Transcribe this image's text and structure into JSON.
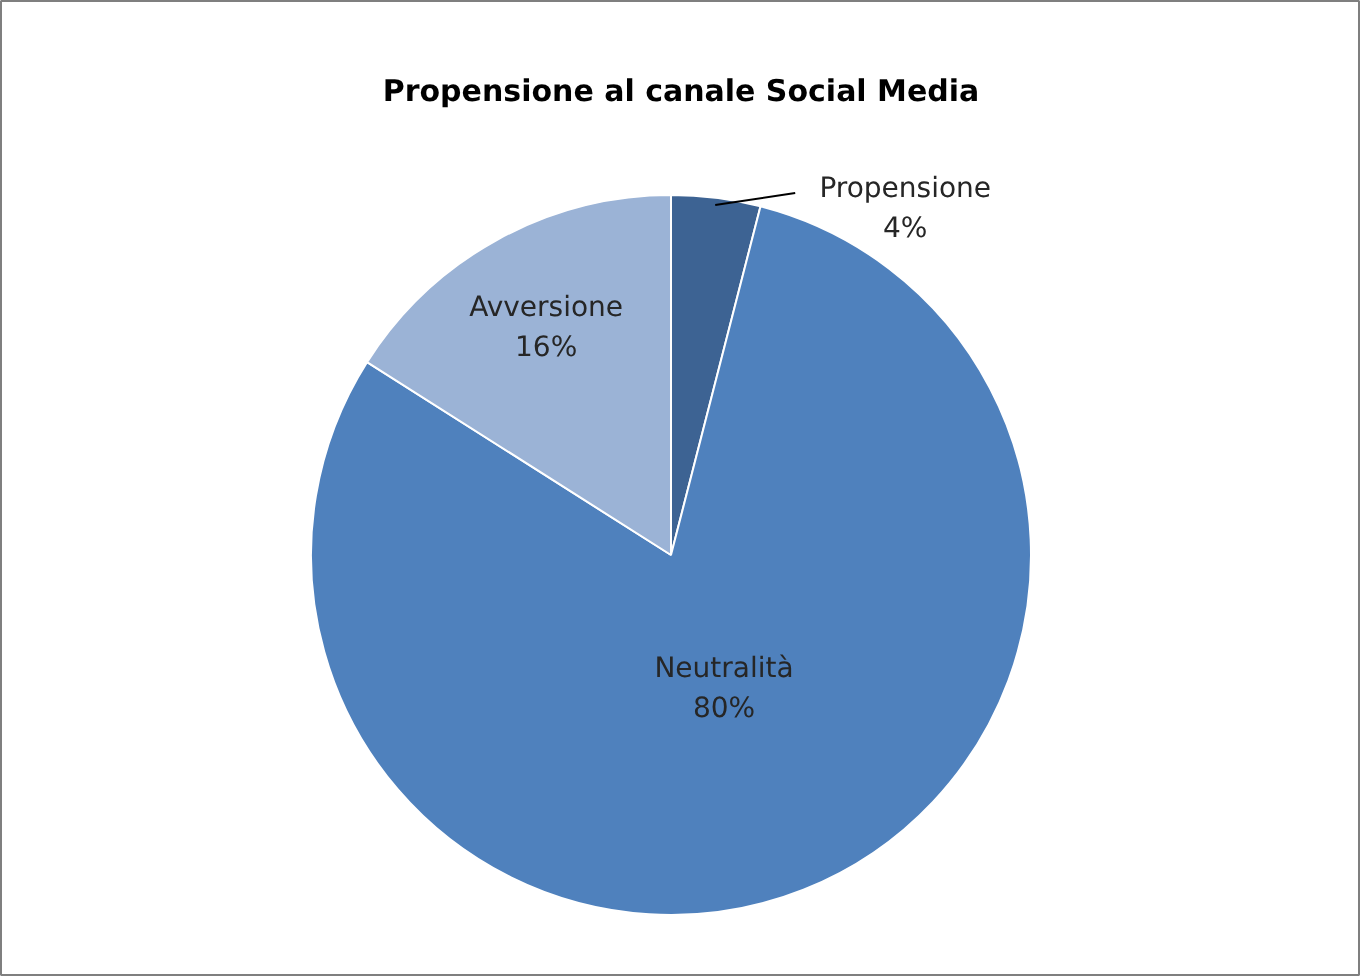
{
  "chart_data": {
    "type": "pie",
    "title": "Propensione al canale Social Media",
    "categories": [
      "Propensione",
      "Neutralità",
      "Avversione"
    ],
    "values": [
      4,
      80,
      16
    ],
    "colors": [
      "#3d6393",
      "#4f81bd",
      "#9bb3d6"
    ],
    "value_labels": [
      "4%",
      "80%",
      "16%"
    ],
    "legend": false
  }
}
